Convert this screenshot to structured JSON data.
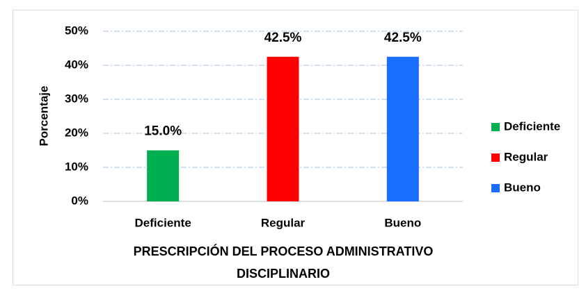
{
  "chart_data": {
    "type": "bar",
    "ylabel": "Porcentaje",
    "xlabel": "PRESCRIPCIÓN DEL PROCESO ADMINISTRATIVO DISCIPLINARIO",
    "categories": [
      "Deficiente",
      "Regular",
      "Bueno"
    ],
    "values": [
      15.0,
      42.5,
      42.5
    ],
    "value_labels": [
      "15.0%",
      "42.5%",
      "42.5%"
    ],
    "colors": [
      "#00b050",
      "#ff0000",
      "#1a6eff"
    ],
    "ylim": [
      0,
      50
    ],
    "yticks": [
      {
        "value": 0,
        "label": "0%"
      },
      {
        "value": 10,
        "label": "10%"
      },
      {
        "value": 20,
        "label": "20%"
      },
      {
        "value": 30,
        "label": "30%"
      },
      {
        "value": 40,
        "label": "40%"
      },
      {
        "value": 50,
        "label": "50%"
      }
    ],
    "grid": true,
    "legend": "right"
  }
}
